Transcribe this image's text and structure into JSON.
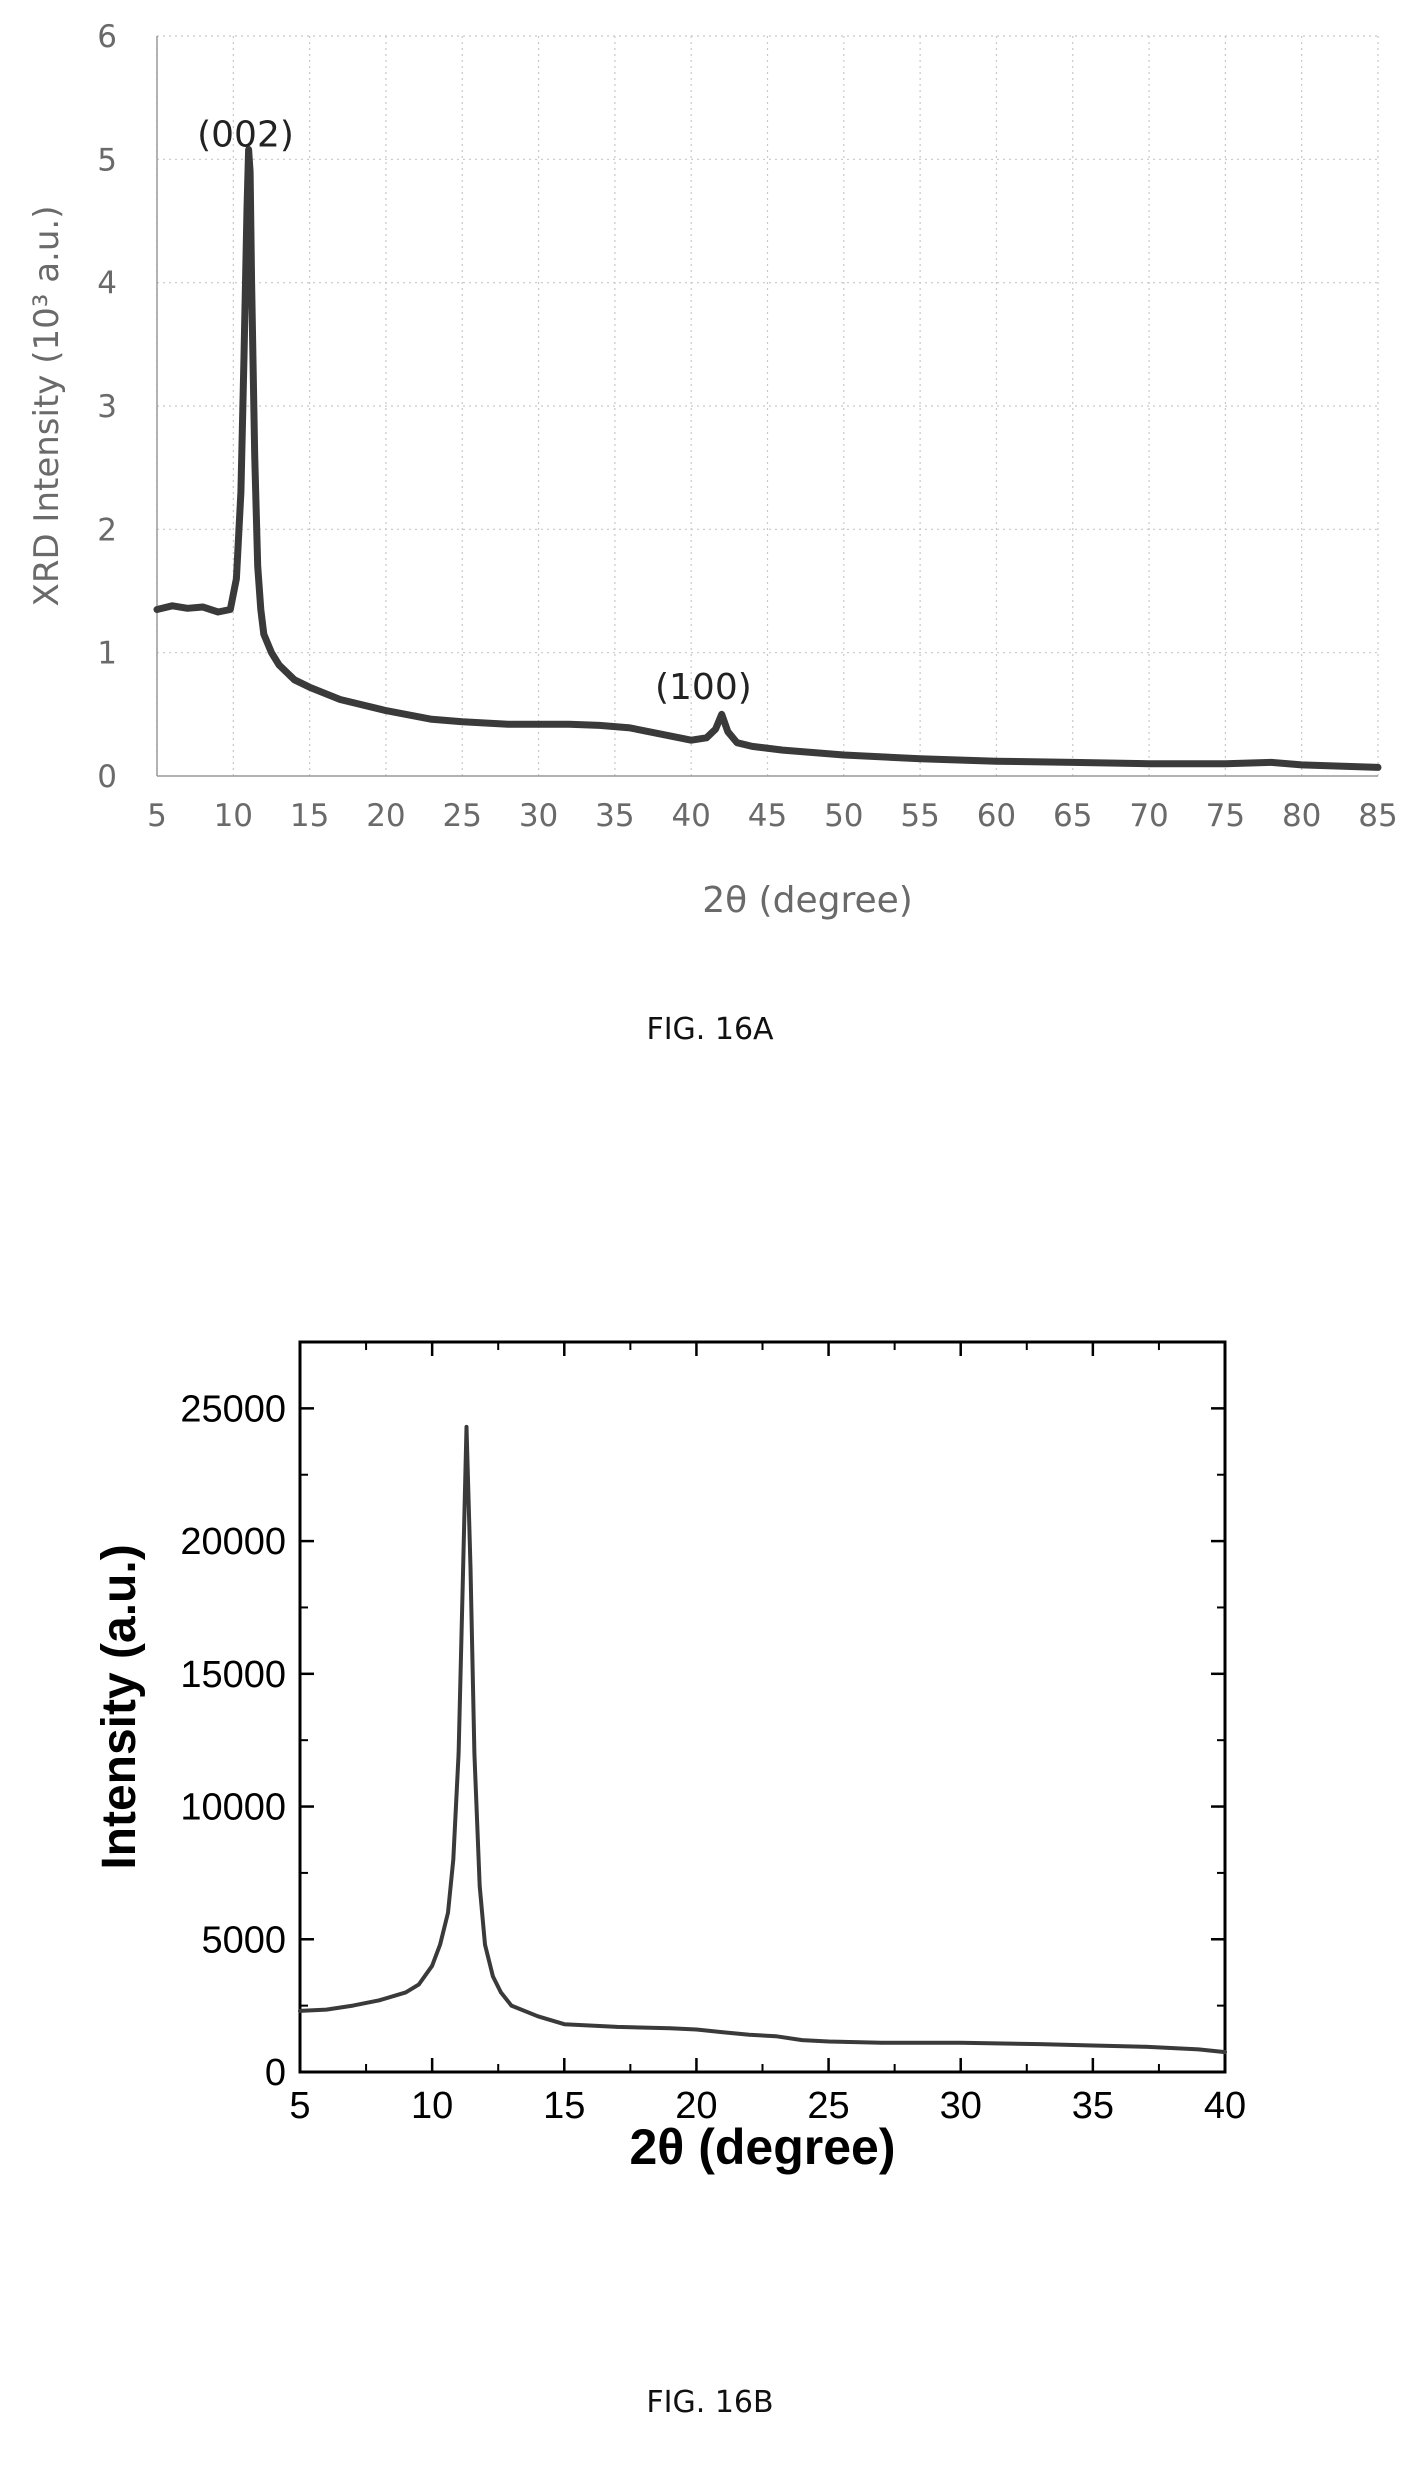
{
  "chart_data": [
    {
      "type": "line",
      "xlabel": "2θ (degree)",
      "ylabel": "XRD Intensity (10³ a.u.)",
      "xlim": [
        5,
        85
      ],
      "ylim": [
        0,
        6
      ],
      "xticks": [
        5,
        10,
        15,
        20,
        25,
        30,
        35,
        40,
        45,
        50,
        55,
        60,
        65,
        70,
        75,
        80,
        85
      ],
      "yticks": [
        0,
        1,
        2,
        3,
        4,
        5,
        6
      ],
      "grid": true,
      "annotations": [
        {
          "text": "(002)",
          "x": 10.8,
          "y": 5.2
        },
        {
          "text": "(100)",
          "x": 40.8,
          "y": 0.72
        }
      ],
      "series": [
        {
          "x": [
            5,
            6,
            7,
            8,
            9,
            9.8,
            10.2,
            10.5,
            10.7,
            10.9,
            11.0,
            11.1,
            11.2,
            11.4,
            11.6,
            11.8,
            12.0,
            12.5,
            13,
            14,
            15,
            17,
            20,
            23,
            25,
            28,
            30,
            32,
            34,
            36,
            38,
            40,
            41,
            41.6,
            42.0,
            42.4,
            43,
            44,
            46,
            50,
            55,
            60,
            65,
            70,
            75,
            78,
            80,
            85
          ],
          "y": [
            1.35,
            1.38,
            1.36,
            1.37,
            1.33,
            1.35,
            1.6,
            2.3,
            3.4,
            4.6,
            5.08,
            4.9,
            4.0,
            2.6,
            1.7,
            1.35,
            1.15,
            1.0,
            0.9,
            0.78,
            0.72,
            0.62,
            0.53,
            0.46,
            0.44,
            0.42,
            0.42,
            0.42,
            0.41,
            0.39,
            0.34,
            0.29,
            0.31,
            0.38,
            0.5,
            0.36,
            0.27,
            0.24,
            0.21,
            0.17,
            0.14,
            0.12,
            0.11,
            0.1,
            0.1,
            0.11,
            0.09,
            0.07
          ]
        }
      ]
    },
    {
      "type": "line",
      "xlabel": "2θ (degree)",
      "ylabel": "Intensity (a.u.)",
      "xlim": [
        5,
        40
      ],
      "ylim": [
        0,
        27500
      ],
      "xticks": [
        5,
        10,
        15,
        20,
        25,
        30,
        35,
        40
      ],
      "yticks": [
        0,
        5000,
        10000,
        15000,
        20000,
        25000
      ],
      "grid": false,
      "series": [
        {
          "x": [
            5,
            6,
            7,
            8,
            9,
            9.5,
            10,
            10.3,
            10.6,
            10.8,
            11.0,
            11.15,
            11.3,
            11.45,
            11.6,
            11.8,
            12.0,
            12.3,
            12.6,
            13,
            14,
            15,
            17,
            19,
            20,
            21,
            22,
            23,
            24,
            25,
            27,
            30,
            33,
            35,
            37,
            39,
            40
          ],
          "y": [
            2300,
            2350,
            2500,
            2700,
            3000,
            3300,
            4000,
            4800,
            6000,
            8000,
            12000,
            18000,
            24300,
            19000,
            12000,
            7000,
            4800,
            3600,
            3000,
            2500,
            2100,
            1800,
            1700,
            1650,
            1600,
            1500,
            1400,
            1350,
            1200,
            1150,
            1100,
            1100,
            1050,
            1000,
            950,
            850,
            750
          ]
        }
      ]
    }
  ],
  "captions": {
    "a": "FIG. 16A",
    "b": "FIG. 16B"
  }
}
